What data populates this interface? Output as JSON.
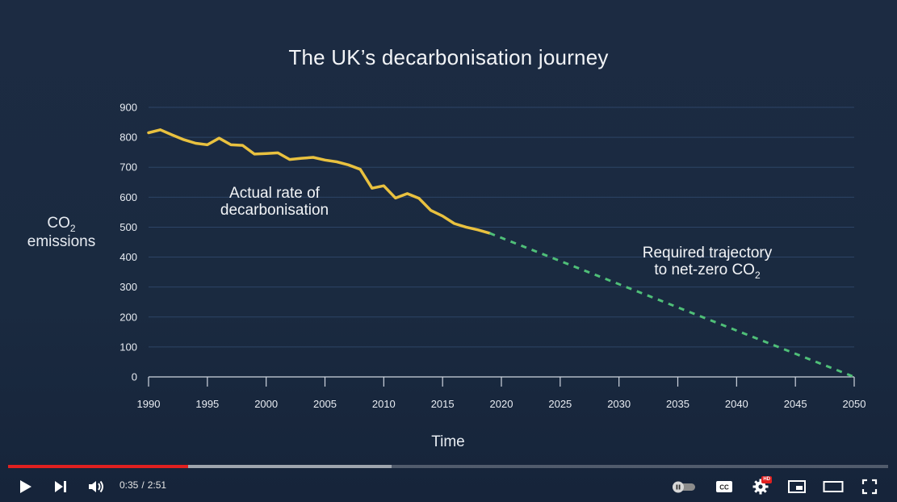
{
  "chart_data": {
    "type": "line",
    "title": "The UK’s decarbonisation journey",
    "ylabel_line1": "CO",
    "ylabel_sub": "2",
    "ylabel_line2": "emissions",
    "xlabel": "Time",
    "ylim": [
      0,
      900
    ],
    "xlim": [
      1990,
      2050
    ],
    "yticks": [
      0,
      100,
      200,
      300,
      400,
      500,
      600,
      700,
      800,
      900
    ],
    "xticks": [
      1990,
      1995,
      2000,
      2005,
      2010,
      2015,
      2020,
      2025,
      2030,
      2035,
      2040,
      2045,
      2050
    ],
    "grid": true,
    "series": [
      {
        "name": "Actual rate of decarbonisation",
        "color": "#e9c13f",
        "style": "solid",
        "x": [
          1990,
          1991,
          1992,
          1993,
          1994,
          1995,
          1996,
          1997,
          1998,
          1999,
          2000,
          2001,
          2002,
          2003,
          2004,
          2005,
          2006,
          2007,
          2008,
          2009,
          2010,
          2011,
          2012,
          2013,
          2014,
          2015,
          2016,
          2017,
          2018,
          2019
        ],
        "y": [
          815,
          825,
          808,
          792,
          780,
          775,
          797,
          775,
          773,
          744,
          746,
          748,
          726,
          730,
          733,
          724,
          718,
          708,
          693,
          630,
          638,
          597,
          612,
          596,
          556,
          537,
          512,
          500,
          491,
          480
        ]
      },
      {
        "name": "Required trajectory to net-zero CO2",
        "color": "#4fbf78",
        "style": "dashed",
        "x": [
          2019,
          2050
        ],
        "y": [
          480,
          0
        ]
      }
    ],
    "annotations": [
      {
        "lines": [
          "Actual rate of",
          "decarbonisation"
        ]
      },
      {
        "lines": [
          "Required trajectory",
          "to net-zero CO"
        ],
        "sub": "2"
      }
    ]
  },
  "player": {
    "current_time": "0:35",
    "separator": "/",
    "duration": "2:51",
    "played_fraction": 0.205,
    "buffered_fraction": 0.436,
    "hd_badge": "HD",
    "cc_label": "CC"
  }
}
